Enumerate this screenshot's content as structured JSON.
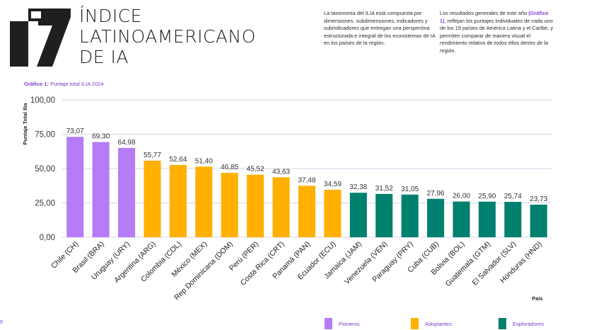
{
  "header": {
    "title_lines": [
      "ÍNDICE",
      "LATINOAMERICANO",
      "DE IA"
    ],
    "paragraph_1": "La taxonomía del ILIA está compuesta por dimensiones, subdimensiones, indicadores y subindicadores que entregan una perspectiva estructurada e integral de los ecosistemas de IA en los países de la región.",
    "paragraph_2_before": "Los resultados generales de este año ",
    "paragraph_2_highlight": "(Gráfico 1)",
    "paragraph_2_after": ", reflejan los puntajes individuales de cada uno de los 19 países de América Latina y el Caribe, y permiten comparar de manera visual el rendimiento relativo de todos ellos dentro de la región."
  },
  "caption": {
    "label": "Gráfico 1:",
    "text": "Puntaje total ILIA 2024"
  },
  "corner_mark": "9",
  "colors": {
    "Pioneros": "#b57cf5",
    "Adoptantes": "#ffb000",
    "Exploradores": "#00806f",
    "grid": "#d9d2ea",
    "logo": "#1f1f1f"
  },
  "chart_data": {
    "type": "bar",
    "title": "Puntaje total ILIA 2024",
    "xlabel": "País",
    "ylabel": "Puntaje Total Ilia",
    "ylim": [
      0,
      100
    ],
    "yticks": [
      "0,00",
      "25,00",
      "50,00",
      "75,00",
      "100,00"
    ],
    "categories": [
      "Chile (CH)",
      "Brasil (BRA)",
      "Uruguay (URY)",
      "Argentina (ARG)",
      "Colombia (COL)",
      "México (MEX)",
      "Rep Dominicana (DOM)",
      "Perú (PER)",
      "Costa Rica (CRT)",
      "Panamá (PAN)",
      "Ecuador (ECU)",
      "Jamaica (JAM)",
      "Venezuela (VEN)",
      "Paraguay (PRY)",
      "Cuba (CUB)",
      "Bolivia (BOL)",
      "Guatemala (GTM)",
      "El Salvador (SLV)",
      "Honduras (HND)"
    ],
    "values": [
      73.07,
      69.3,
      64.98,
      55.77,
      52.64,
      51.4,
      46.85,
      45.52,
      43.63,
      37.48,
      34.59,
      32.38,
      31.52,
      31.05,
      27.96,
      26.0,
      25.9,
      25.74,
      23.73
    ],
    "value_labels": [
      "73,07",
      "69,30",
      "64,98",
      "55,77",
      "52,64",
      "51,40",
      "46,85",
      "45,52",
      "43,63",
      "37,48",
      "34,59",
      "32,38",
      "31,52",
      "31,05",
      "27,96",
      "26,00",
      "25,90",
      "25,74",
      "23,73"
    ],
    "groups": [
      "Pioneros",
      "Pioneros",
      "Pioneros",
      "Adoptantes",
      "Adoptantes",
      "Adoptantes",
      "Adoptantes",
      "Adoptantes",
      "Adoptantes",
      "Adoptantes",
      "Adoptantes",
      "Exploradores",
      "Exploradores",
      "Exploradores",
      "Exploradores",
      "Exploradores",
      "Exploradores",
      "Exploradores",
      "Exploradores"
    ],
    "legend": [
      {
        "name": "Pioneros"
      },
      {
        "name": "Adoptantes"
      },
      {
        "name": "Exploradores"
      }
    ],
    "legend_position": "bottom",
    "grid": true
  }
}
